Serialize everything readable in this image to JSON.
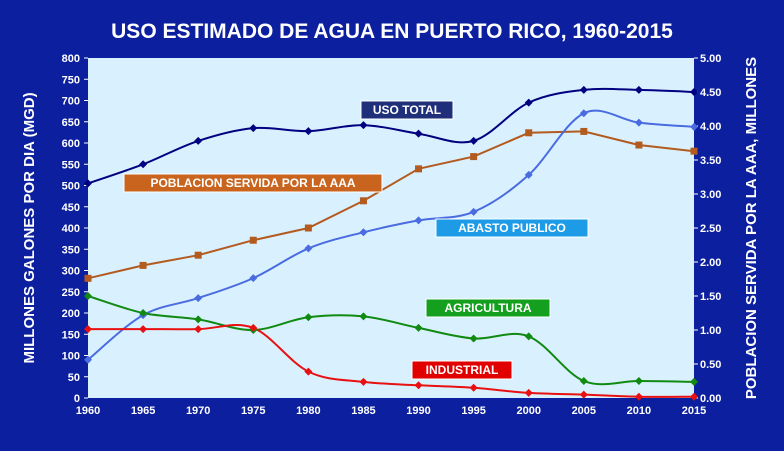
{
  "chart_data": {
    "type": "line",
    "title": "USO ESTIMADO DE AGUA EN PUERTO RICO, 1960-2015",
    "ylabel": "MILLONES GALONES POR DIA (MGD)",
    "y2label": "POBLACION SERVIDA POR LA AAA, MILLONES",
    "x": [
      1960,
      1965,
      1970,
      1975,
      1980,
      1985,
      1990,
      1995,
      2000,
      2005,
      2010,
      2015
    ],
    "xlim": [
      1960,
      2015
    ],
    "ylim": [
      0,
      800
    ],
    "y2lim": [
      0,
      5
    ],
    "yticks": [
      "0",
      "50",
      "100",
      "150",
      "200",
      "250",
      "300",
      "350",
      "400",
      "450",
      "500",
      "550",
      "600",
      "650",
      "700",
      "750",
      "800"
    ],
    "y2ticks": [
      "0.00",
      "0.50",
      "1.00",
      "1.50",
      "2.00",
      "2.50",
      "3.00",
      "3.50",
      "4.00",
      "4.50",
      "5.00"
    ],
    "grid": false,
    "series": [
      {
        "name": "USO TOTAL",
        "axis": "left",
        "color": "#000080",
        "label_bg": "#1f2f7a",
        "values": [
          505,
          550,
          605,
          635,
          628,
          642,
          622,
          605,
          695,
          725,
          725,
          720
        ]
      },
      {
        "name": "POBLACION SERVIDA POR LA AAA",
        "axis": "right",
        "color": "#b35a1f",
        "label_bg": "#c8641e",
        "values": [
          1.76,
          1.95,
          2.1,
          2.32,
          2.5,
          2.9,
          3.37,
          3.55,
          3.9,
          3.92,
          3.72,
          3.63
        ]
      },
      {
        "name": "ABASTO PUBLICO",
        "axis": "left",
        "color": "#4a6ce0",
        "label_bg": "#1e9be6",
        "values": [
          90,
          195,
          235,
          282,
          352,
          390,
          418,
          438,
          525,
          670,
          648,
          638
        ]
      },
      {
        "name": "AGRICULTURA",
        "axis": "left",
        "color": "#118a11",
        "label_bg": "#14a01e",
        "values": [
          240,
          200,
          185,
          160,
          190,
          192,
          165,
          140,
          145,
          40,
          40,
          38
        ]
      },
      {
        "name": "INDUSTRIAL",
        "axis": "left",
        "color": "#e81010",
        "label_bg": "#e00000",
        "values": [
          162,
          162,
          162,
          165,
          62,
          38,
          30,
          24,
          12,
          8,
          3,
          3
        ]
      }
    ]
  }
}
